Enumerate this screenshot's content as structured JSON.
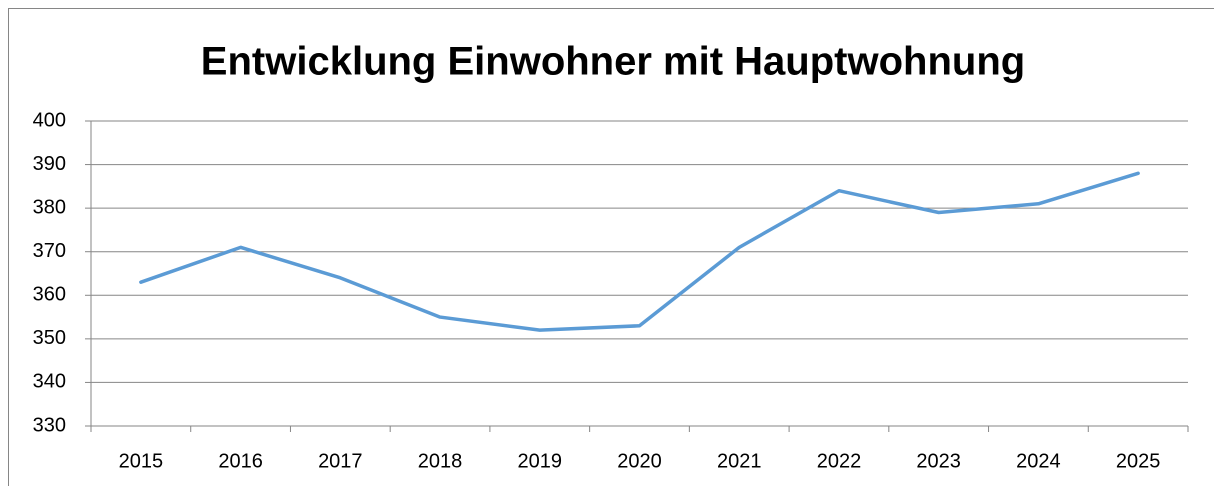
{
  "chart_data": {
    "type": "line",
    "title": "Entwicklung Einwohner mit Hauptwohnung",
    "categories": [
      "2015",
      "2016",
      "2017",
      "2018",
      "2019",
      "2020",
      "2021",
      "2022",
      "2023",
      "2024",
      "2025"
    ],
    "series": [
      {
        "color": "#5b9bd5",
        "values": [
          363,
          371,
          364,
          355,
          352,
          353,
          371,
          384,
          379,
          381,
          388
        ]
      }
    ],
    "ylim": [
      330,
      400
    ],
    "yticks": [
      330,
      340,
      350,
      360,
      370,
      380,
      390,
      400
    ],
    "grid": true
  }
}
